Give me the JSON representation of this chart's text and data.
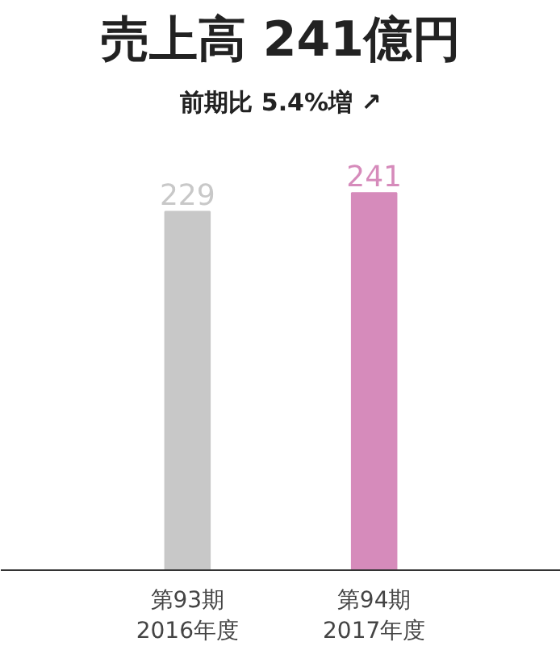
{
  "chart_data": {
    "type": "bar",
    "title": "売上高 241億円",
    "subtitle": "前期比 5.4%増 ↗",
    "categories": [
      "第93期\n2016年度",
      "第94期\n2017年度"
    ],
    "values": [
      229,
      241
    ],
    "colors": [
      "#c8c8c8",
      "#d68bbb"
    ],
    "data_labels": true
  }
}
